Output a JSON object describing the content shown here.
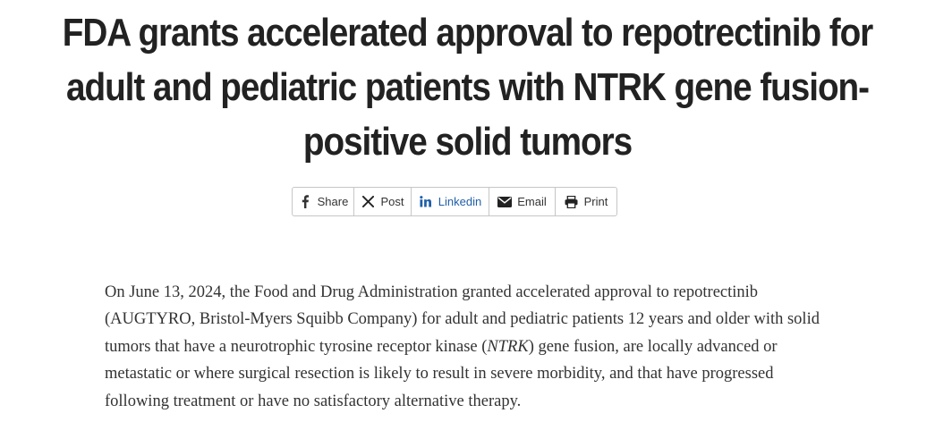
{
  "article": {
    "title": "FDA grants accelerated approval to repotrectinib for adult and pediatric patients with NTRK gene fusion-positive solid tumors",
    "intro": {
      "part1": "On June 13, 2024, the Food and Drug Administration granted accelerated approval to repotrectinib (AUGTYRO, Bristol-Myers Squibb Company) for adult and pediatric patients 12 years and older with solid tumors that have a neurotrophic tyrosine receptor kinase (",
      "emphasis": "NTRK",
      "part2": ") gene fusion, are locally advanced or metastatic or where surgical resection is likely to result in severe morbidity, and that have progressed following treatment or have no satisfactory alternative therapy."
    }
  },
  "share_bar": {
    "facebook": {
      "label": "Share",
      "icon": "facebook-icon"
    },
    "x": {
      "label": "Post",
      "icon": "x-icon"
    },
    "linkedin": {
      "label": "Linkedin",
      "icon": "linkedin-icon",
      "color": "#1f5fa8"
    },
    "email": {
      "label": "Email",
      "icon": "envelope-icon"
    },
    "print": {
      "label": "Print",
      "icon": "printer-icon"
    }
  }
}
